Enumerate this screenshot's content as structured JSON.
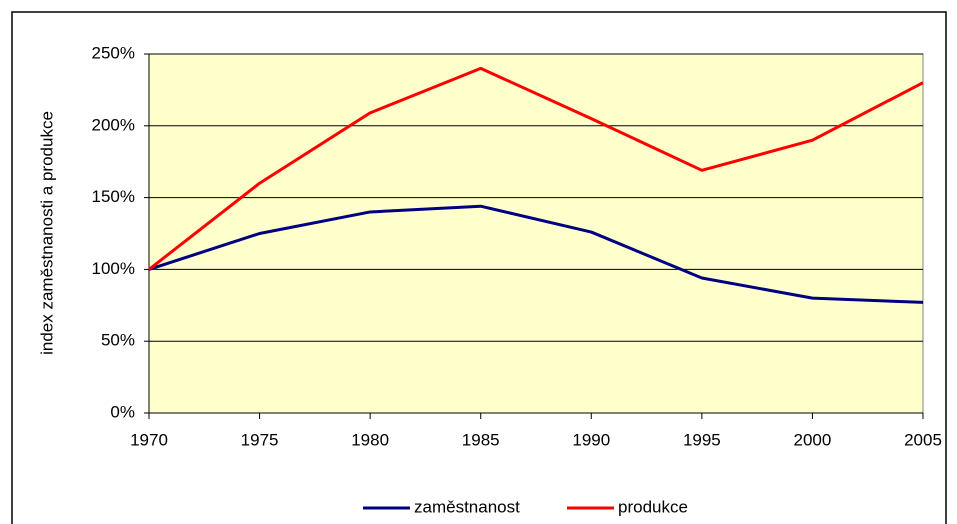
{
  "chart_data": {
    "type": "line",
    "y_label": "index zaměstnanosti a produkce",
    "x": [
      1970,
      1975,
      1980,
      1985,
      1990,
      1995,
      2000,
      2005
    ],
    "xlim": [
      1970,
      2005
    ],
    "xticks": [
      1970,
      1975,
      1980,
      1985,
      1990,
      1995,
      2000,
      2005
    ],
    "ylim": [
      0,
      250
    ],
    "yticks": [
      {
        "value": 0,
        "label": "0%"
      },
      {
        "value": 50,
        "label": "50%"
      },
      {
        "value": 100,
        "label": "100%"
      },
      {
        "value": 150,
        "label": "150%"
      },
      {
        "value": 200,
        "label": "200%"
      },
      {
        "value": 250,
        "label": "250%"
      }
    ],
    "grid": true,
    "legend": "bottom",
    "plot_background": "#ffffcc",
    "series": [
      {
        "name": "zaměstnanost",
        "color": "#000080",
        "values": [
          100,
          125,
          140,
          144,
          126,
          94,
          80,
          77
        ]
      },
      {
        "name": "produkce",
        "color": "#ff0000",
        "values": [
          100,
          160,
          209,
          240,
          205,
          169,
          190,
          230
        ]
      }
    ]
  }
}
